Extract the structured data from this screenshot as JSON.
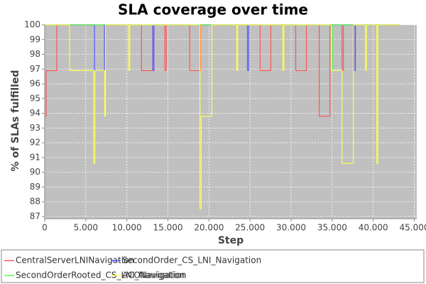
{
  "chart_data": {
    "type": "step",
    "title": "SLA coverage over time",
    "x_label": "Step",
    "y_label": "% of SLAs fulfilled",
    "xlim": [
      0,
      45300
    ],
    "ylim": [
      86.85,
      100
    ],
    "xticks": [
      0,
      {
        "value": 5000,
        "label": "5.000"
      },
      {
        "value": 10000,
        "label": "10.000"
      },
      {
        "value": 15000,
        "label": "15.000"
      },
      {
        "value": 20000,
        "label": "20.000"
      },
      {
        "value": 25000,
        "label": "25.000"
      },
      {
        "value": 30000,
        "label": "30.000"
      },
      {
        "value": 35000,
        "label": "35.000"
      },
      {
        "value": 40000,
        "label": "40.000"
      },
      {
        "value": 45000,
        "label": "45.000"
      }
    ],
    "yticks": [
      87,
      88,
      89,
      90,
      91,
      92,
      93,
      94,
      95,
      96,
      97,
      98,
      99,
      100
    ],
    "grid": true,
    "legend": "bottom",
    "series": [
      {
        "name": "CentralServerLNINavigation",
        "color": "#ff5555",
        "x": [
          0,
          170,
          1470,
          11780,
          13160,
          14630,
          14800,
          17660,
          18960,
          26230,
          27530,
          30560,
          31860,
          33420,
          34720,
          36190,
          36360,
          43300
        ],
        "values": [
          93.8,
          96.9,
          100,
          96.9,
          100,
          96.9,
          100,
          96.9,
          100,
          96.9,
          100,
          96.9,
          100,
          93.8,
          100,
          96.9,
          100,
          100
        ]
      },
      {
        "name": "SecondOrder_CS_LNI_Navigation",
        "color": "#5555ff",
        "x": [
          0,
          6060,
          7270,
          13160,
          13300,
          24680,
          24850,
          37660,
          37830,
          43300
        ],
        "values": [
          100,
          96.9,
          100,
          96.9,
          100,
          96.9,
          100,
          96.9,
          100,
          100
        ]
      },
      {
        "name": "SecondOrderRooted_CS_LNI_Navigation",
        "color": "#55ff55",
        "x": [
          0,
          34890,
          35030,
          43300
        ],
        "values": [
          100,
          96.9,
          100,
          100
        ]
      },
      {
        "name": "ACONavigation",
        "color": "#ffff55",
        "x": [
          0,
          3030,
          5970,
          6100,
          7300,
          7400,
          10220,
          10350,
          18900,
          19050,
          20350,
          23380,
          23500,
          29000,
          29130,
          34890,
          36190,
          37580,
          39050,
          39180,
          40430,
          40560,
          43300
        ],
        "values": [
          100,
          96.9,
          90.6,
          96.9,
          93.8,
          100,
          96.9,
          100,
          87.5,
          93.8,
          100,
          96.9,
          100,
          96.9,
          100,
          96.9,
          90.6,
          100,
          96.9,
          100,
          90.6,
          100,
          100
        ]
      }
    ]
  }
}
